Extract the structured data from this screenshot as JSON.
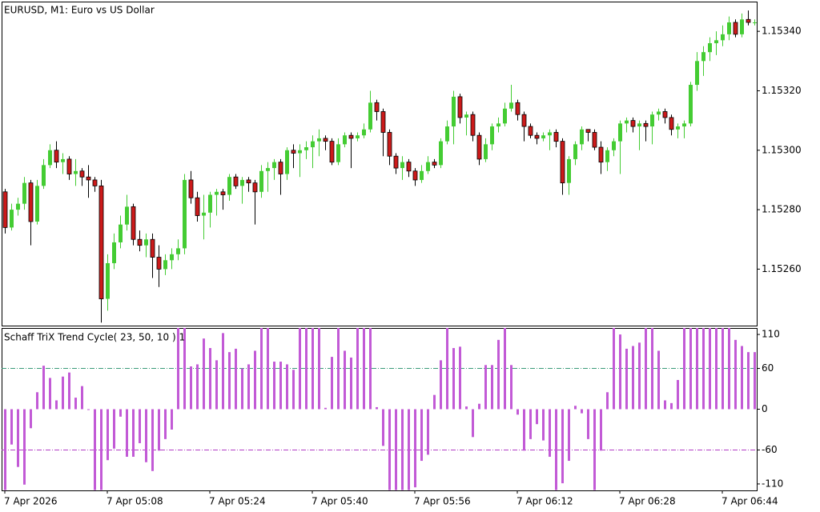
{
  "chart_data": [
    {
      "type": "candlestick",
      "title": "EURUSD, M1:  Euro vs US Dollar",
      "up_color": "#44cc33",
      "down_color": "#cc1a1a",
      "categories": [
        "7 Apr 2026",
        null,
        null,
        null,
        null,
        null,
        null,
        null,
        null,
        null,
        null,
        null,
        null,
        null,
        null,
        null,
        "7 Apr 05:08",
        null,
        null,
        null,
        null,
        null,
        null,
        null,
        null,
        null,
        null,
        null,
        null,
        null,
        null,
        null,
        "7 Apr 05:24",
        null,
        null,
        null,
        null,
        null,
        null,
        null,
        null,
        null,
        null,
        null,
        null,
        null,
        null,
        null,
        "7 Apr 05:40",
        null,
        null,
        null,
        null,
        null,
        null,
        null,
        null,
        null,
        null,
        null,
        null,
        null,
        null,
        null,
        "7 Apr 05:56",
        null,
        null,
        null,
        null,
        null,
        null,
        null,
        null,
        null,
        null,
        null,
        null,
        null,
        null,
        null,
        "7 Apr 06:12",
        null,
        null,
        null,
        null,
        null,
        null,
        null,
        null,
        null,
        null,
        null,
        null,
        null,
        null,
        null,
        "7 Apr 06:28",
        null,
        null,
        null,
        null,
        null,
        null,
        null,
        null,
        null,
        null,
        null,
        null,
        null,
        null,
        null,
        "7 Apr 06:44",
        null,
        null,
        null,
        null,
        null
      ],
      "open": [
        1.15286,
        1.15274,
        1.1528,
        1.15282,
        1.15289,
        1.15276,
        1.15288,
        1.15295,
        1.153,
        1.15296,
        1.15297,
        1.15292,
        1.15293,
        1.15291,
        1.1529,
        1.15288,
        1.1525,
        1.15262,
        1.15269,
        1.15275,
        1.15281,
        1.1527,
        1.15268,
        1.1527,
        1.15264,
        1.1526,
        1.15263,
        1.15265,
        1.15267,
        1.1529,
        1.15284,
        1.15278,
        1.15279,
        1.15285,
        1.15286,
        1.15285,
        1.15291,
        1.15288,
        1.1529,
        1.15289,
        1.15286,
        1.15293,
        1.15294,
        1.15296,
        1.15292,
        1.153,
        1.15299,
        1.153,
        1.15301,
        1.15303,
        1.15304,
        1.15303,
        1.15296,
        1.15302,
        1.15305,
        1.15304,
        1.15305,
        1.15307,
        1.15316,
        1.15313,
        1.15306,
        1.15298,
        1.15294,
        1.15296,
        1.15293,
        1.1529,
        1.15293,
        1.15296,
        1.15295,
        1.15303,
        1.15308,
        1.15318,
        1.15311,
        1.15312,
        1.15305,
        1.15297,
        1.15302,
        1.15308,
        1.15309,
        1.15314,
        1.15316,
        1.15312,
        1.15308,
        1.15305,
        1.15304,
        1.15305,
        1.15306,
        1.15303,
        1.15289,
        1.15297,
        1.15302,
        1.15307,
        1.15306,
        1.15301,
        1.15296,
        1.153,
        1.15303,
        1.15309,
        1.1531,
        1.15308,
        1.15309,
        1.15308,
        1.15312,
        1.15313,
        1.15311,
        1.15307,
        1.15308,
        1.15309,
        1.15322,
        1.1533,
        1.15333,
        1.15336,
        1.15337,
        1.15339,
        1.15343,
        1.15339,
        1.15344,
        1.15343
      ],
      "high": [
        1.15287,
        1.15282,
        1.15284,
        1.15291,
        1.1529,
        1.1529,
        1.15297,
        1.15302,
        1.15303,
        1.15299,
        1.15298,
        1.15297,
        1.15294,
        1.15295,
        1.15291,
        1.1529,
        1.15265,
        1.15272,
        1.15278,
        1.15285,
        1.15282,
        1.15273,
        1.15272,
        1.15272,
        1.15268,
        1.15265,
        1.15267,
        1.1527,
        1.15292,
        1.15293,
        1.15286,
        1.15285,
        1.15286,
        1.15287,
        1.15287,
        1.15292,
        1.15292,
        1.15291,
        1.15291,
        1.1529,
        1.15295,
        1.15296,
        1.15297,
        1.15297,
        1.15301,
        1.15302,
        1.15302,
        1.15303,
        1.15305,
        1.15307,
        1.15305,
        1.15304,
        1.15304,
        1.15306,
        1.15306,
        1.15306,
        1.15309,
        1.1532,
        1.15317,
        1.15314,
        1.15307,
        1.15299,
        1.15298,
        1.15297,
        1.15294,
        1.15295,
        1.15298,
        1.15297,
        1.15304,
        1.1531,
        1.1532,
        1.15319,
        1.15313,
        1.15313,
        1.15306,
        1.15304,
        1.15309,
        1.15311,
        1.15316,
        1.15322,
        1.15317,
        1.15313,
        1.15309,
        1.15306,
        1.15306,
        1.15307,
        1.15307,
        1.15304,
        1.15298,
        1.15303,
        1.15308,
        1.15307,
        1.15307,
        1.15303,
        1.15301,
        1.15304,
        1.1531,
        1.15311,
        1.15311,
        1.1531,
        1.1531,
        1.15313,
        1.15314,
        1.15314,
        1.15312,
        1.15309,
        1.1531,
        1.15323,
        1.15333,
        1.15335,
        1.15338,
        1.1534,
        1.15342,
        1.15345,
        1.15344,
        1.15346,
        1.15347,
        1.15344
      ],
      "low": [
        1.15272,
        1.15273,
        1.15278,
        1.1528,
        1.15268,
        1.15275,
        1.15287,
        1.15294,
        1.15294,
        1.15292,
        1.1529,
        1.15288,
        1.15288,
        1.15284,
        1.15286,
        1.15242,
        1.15246,
        1.1526,
        1.15267,
        1.15273,
        1.15268,
        1.15266,
        1.15264,
        1.15257,
        1.15254,
        1.15258,
        1.1526,
        1.15263,
        1.15265,
        1.15282,
        1.15276,
        1.1527,
        1.15274,
        1.15278,
        1.1528,
        1.15283,
        1.15287,
        1.15282,
        1.15286,
        1.15275,
        1.15284,
        1.15286,
        1.1529,
        1.15285,
        1.1529,
        1.15294,
        1.15291,
        1.15297,
        1.15294,
        1.15298,
        1.153,
        1.15295,
        1.15295,
        1.15301,
        1.15294,
        1.15303,
        1.15304,
        1.15306,
        1.1531,
        1.15298,
        1.15295,
        1.15292,
        1.1529,
        1.15291,
        1.15288,
        1.15289,
        1.15292,
        1.15294,
        1.15294,
        1.15302,
        1.15302,
        1.15309,
        1.15305,
        1.15303,
        1.15295,
        1.15296,
        1.153,
        1.15306,
        1.15308,
        1.15313,
        1.1531,
        1.15303,
        1.15304,
        1.15302,
        1.15303,
        1.153,
        1.15301,
        1.15285,
        1.15285,
        1.15295,
        1.153,
        1.15303,
        1.153,
        1.15292,
        1.15293,
        1.15298,
        1.15292,
        1.15306,
        1.15306,
        1.153,
        1.15303,
        1.15302,
        1.1531,
        1.15309,
        1.15305,
        1.15304,
        1.15304,
        1.15308,
        1.1532,
        1.15325,
        1.1533,
        1.15332,
        1.15335,
        1.15337,
        1.15338,
        1.15338,
        1.15342,
        1.15342
      ],
      "close": [
        1.15274,
        1.1528,
        1.15282,
        1.15289,
        1.15276,
        1.15288,
        1.15295,
        1.153,
        1.15296,
        1.15297,
        1.15292,
        1.15293,
        1.15291,
        1.1529,
        1.15288,
        1.1525,
        1.15262,
        1.15269,
        1.15275,
        1.15281,
        1.1527,
        1.15268,
        1.1527,
        1.15264,
        1.1526,
        1.15263,
        1.15265,
        1.15267,
        1.1529,
        1.15284,
        1.15278,
        1.15279,
        1.15285,
        1.15286,
        1.15285,
        1.15291,
        1.15288,
        1.1529,
        1.15289,
        1.15286,
        1.15293,
        1.15294,
        1.15296,
        1.15292,
        1.153,
        1.15299,
        1.153,
        1.15301,
        1.15303,
        1.15304,
        1.15303,
        1.15296,
        1.15302,
        1.15305,
        1.15304,
        1.15305,
        1.15307,
        1.15316,
        1.15313,
        1.15306,
        1.15298,
        1.15294,
        1.15296,
        1.15293,
        1.1529,
        1.15293,
        1.15296,
        1.15295,
        1.15303,
        1.15308,
        1.15318,
        1.15311,
        1.15312,
        1.15305,
        1.15297,
        1.15302,
        1.15308,
        1.15309,
        1.15314,
        1.15316,
        1.15312,
        1.15308,
        1.15305,
        1.15304,
        1.15305,
        1.15306,
        1.15303,
        1.15289,
        1.15297,
        1.15302,
        1.15307,
        1.15306,
        1.15301,
        1.15296,
        1.153,
        1.15303,
        1.15309,
        1.1531,
        1.15308,
        1.15309,
        1.15308,
        1.15312,
        1.15313,
        1.15311,
        1.15307,
        1.15308,
        1.15309,
        1.15322,
        1.1533,
        1.15333,
        1.15336,
        1.15337,
        1.15339,
        1.15343,
        1.15339,
        1.15344,
        1.15343,
        1.15343
      ],
      "ylim": [
        1.15241,
        1.1535
      ],
      "yticks": [
        {
          "value": 1.1526,
          "label": "1.15260"
        },
        {
          "value": 1.1528,
          "label": "1.15280"
        },
        {
          "value": 1.153,
          "label": "1.15300"
        },
        {
          "value": 1.1532,
          "label": "1.15320"
        },
        {
          "value": 1.1534,
          "label": "1.15340"
        }
      ]
    },
    {
      "type": "bar",
      "title": "Schaff TriX Trend Cycle( 23, 50, 10 ) 1",
      "color": "#c25ad6",
      "values": [
        -119,
        -52,
        -85,
        -111,
        -28,
        25,
        64,
        46,
        13,
        48,
        54,
        17,
        34,
        0,
        -119,
        -119,
        -75,
        -58,
        -11,
        -70,
        -70,
        -50,
        -78,
        -91,
        -61,
        -44,
        -30,
        120,
        120,
        63,
        66,
        104,
        90,
        72,
        112,
        84,
        89,
        60,
        66,
        86,
        120,
        120,
        70,
        70,
        66,
        58,
        120,
        120,
        120,
        120,
        2,
        77,
        120,
        86,
        76,
        120,
        120,
        120,
        3,
        -54,
        -119,
        -119,
        -119,
        -119,
        -115,
        -76,
        -67,
        21,
        72,
        120,
        90,
        92,
        4,
        -41,
        8,
        65,
        65,
        102,
        120,
        65,
        -8,
        -61,
        -44,
        -22,
        -46,
        -70,
        -119,
        -109,
        -76,
        5,
        -6,
        -44,
        -119,
        -61,
        25,
        120,
        110,
        89,
        93,
        98,
        120,
        120,
        86,
        13,
        9,
        43,
        120,
        120,
        120,
        120,
        120,
        120,
        120,
        120,
        102,
        93,
        84,
        84
      ],
      "ylim": [
        -119.5,
        119.5
      ],
      "yticks": [
        -110,
        -60,
        0,
        60,
        110
      ],
      "levels": [
        {
          "value": 60,
          "color": "#3a9c78"
        },
        {
          "value": -60,
          "color": "#b23cc6"
        }
      ]
    }
  ]
}
